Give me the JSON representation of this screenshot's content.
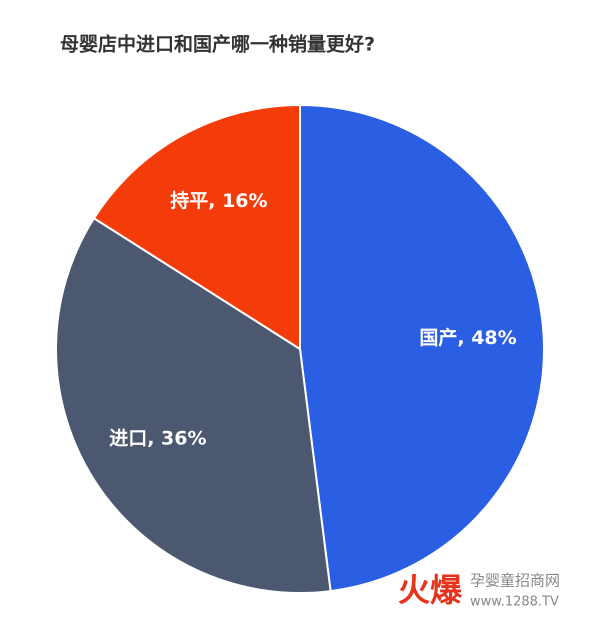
{
  "chart_data": {
    "type": "pie",
    "title": "母婴店中进口和国产哪一种销量更好?",
    "values": [
      48,
      36,
      16
    ],
    "value_labels": [
      "国产, 48%",
      "进口, 36%",
      "持平, 16%"
    ],
    "colors": [
      "#2b5fe3",
      "#4b5870",
      "#f33c0a"
    ]
  },
  "watermark": {
    "brand": "火爆",
    "site": "孕婴童招商网",
    "url": "www.1288.TV"
  }
}
